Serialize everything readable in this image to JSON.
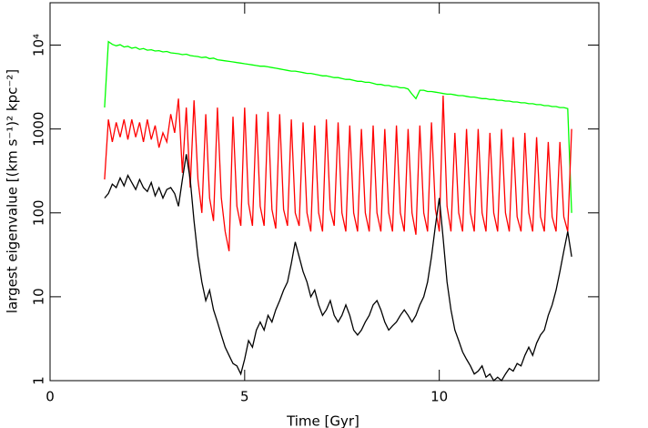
{
  "chart_data": {
    "type": "line",
    "xlabel": "Time [Gyr]",
    "ylabel": "largest eigenvalue [(km s⁻¹)² kpc⁻²]",
    "xlim": [
      0,
      14.1
    ],
    "xticks": [
      0,
      5,
      10
    ],
    "ylim": [
      1,
      32000
    ],
    "ylog": true,
    "yticks": [
      1,
      10,
      100,
      1000,
      {
        "value": 10000,
        "label": "10⁴"
      }
    ],
    "x": [
      1.4,
      1.5,
      1.6,
      1.7,
      1.8,
      1.9,
      2.0,
      2.1,
      2.2,
      2.3,
      2.4,
      2.5,
      2.6,
      2.7,
      2.8,
      2.9,
      3.0,
      3.1,
      3.2,
      3.3,
      3.4,
      3.5,
      3.6,
      3.7,
      3.8,
      3.9,
      4.0,
      4.1,
      4.2,
      4.3,
      4.4,
      4.5,
      4.6,
      4.7,
      4.8,
      4.9,
      5.0,
      5.1,
      5.2,
      5.3,
      5.4,
      5.5,
      5.6,
      5.7,
      5.8,
      5.9,
      6.0,
      6.1,
      6.2,
      6.3,
      6.4,
      6.5,
      6.6,
      6.7,
      6.8,
      6.9,
      7.0,
      7.1,
      7.2,
      7.3,
      7.4,
      7.5,
      7.6,
      7.7,
      7.8,
      7.9,
      8.0,
      8.1,
      8.2,
      8.3,
      8.4,
      8.5,
      8.6,
      8.7,
      8.8,
      8.9,
      9.0,
      9.1,
      9.2,
      9.3,
      9.4,
      9.5,
      9.6,
      9.7,
      9.8,
      9.9,
      10.0,
      10.1,
      10.2,
      10.3,
      10.4,
      10.5,
      10.6,
      10.7,
      10.8,
      10.9,
      11.0,
      11.1,
      11.2,
      11.3,
      11.4,
      11.5,
      11.6,
      11.7,
      11.8,
      11.9,
      12.0,
      12.1,
      12.2,
      12.3,
      12.4,
      12.5,
      12.6,
      12.7,
      12.8,
      12.9,
      13.0,
      13.1,
      13.2,
      13.3,
      13.4
    ],
    "series": [
      {
        "color": "#00ff00",
        "values": [
          1800,
          11000,
          10200,
          9800,
          10100,
          9500,
          9700,
          9200,
          9400,
          8900,
          9100,
          8700,
          8800,
          8500,
          8600,
          8300,
          8400,
          8100,
          8000,
          7900,
          7700,
          7800,
          7500,
          7400,
          7300,
          7100,
          7200,
          6900,
          7000,
          6700,
          6600,
          6500,
          6400,
          6300,
          6200,
          6100,
          6000,
          5900,
          5800,
          5700,
          5600,
          5600,
          5500,
          5400,
          5300,
          5200,
          5100,
          5000,
          4900,
          4900,
          4800,
          4700,
          4600,
          4600,
          4500,
          4400,
          4300,
          4300,
          4200,
          4100,
          4100,
          4000,
          3900,
          3900,
          3800,
          3700,
          3700,
          3600,
          3600,
          3500,
          3400,
          3400,
          3300,
          3300,
          3200,
          3200,
          3100,
          3100,
          3000,
          2600,
          2300,
          2900,
          2900,
          2800,
          2800,
          2750,
          2700,
          2650,
          2600,
          2600,
          2550,
          2500,
          2500,
          2450,
          2400,
          2400,
          2350,
          2300,
          2300,
          2250,
          2250,
          2200,
          2200,
          2150,
          2150,
          2100,
          2100,
          2050,
          2050,
          2000,
          2000,
          1950,
          1950,
          1900,
          1900,
          1850,
          1850,
          1800,
          1800,
          1750,
          100
        ]
      },
      {
        "color": "#ff0000",
        "values": [
          250,
          1300,
          700,
          1200,
          800,
          1300,
          750,
          1300,
          800,
          1200,
          700,
          1300,
          750,
          1100,
          600,
          900,
          700,
          1500,
          900,
          2300,
          300,
          1800,
          200,
          2200,
          250,
          100,
          1500,
          150,
          80,
          1800,
          150,
          60,
          35,
          1400,
          120,
          70,
          1800,
          130,
          70,
          1500,
          120,
          70,
          1600,
          110,
          65,
          1500,
          110,
          70,
          1300,
          100,
          70,
          1200,
          100,
          60,
          1100,
          100,
          60,
          1300,
          110,
          70,
          1200,
          100,
          60,
          1100,
          100,
          60,
          1000,
          100,
          60,
          1100,
          100,
          60,
          1000,
          100,
          60,
          1100,
          100,
          60,
          1000,
          100,
          55,
          1100,
          100,
          60,
          1200,
          110,
          60,
          2500,
          120,
          60,
          900,
          100,
          60,
          1000,
          100,
          60,
          1000,
          100,
          60,
          900,
          100,
          60,
          1000,
          100,
          60,
          800,
          90,
          60,
          900,
          100,
          60,
          800,
          90,
          60,
          700,
          90,
          60,
          700,
          90,
          60,
          1000
        ]
      },
      {
        "color": "#000000",
        "values": [
          150,
          170,
          220,
          200,
          260,
          210,
          280,
          230,
          190,
          250,
          200,
          180,
          230,
          160,
          200,
          150,
          190,
          200,
          170,
          120,
          250,
          500,
          250,
          80,
          30,
          15,
          9,
          12,
          7,
          5,
          3.5,
          2.5,
          2,
          1.6,
          1.5,
          1.2,
          1.8,
          3,
          2.5,
          4,
          5,
          4,
          6,
          5,
          7,
          9,
          12,
          15,
          25,
          45,
          30,
          20,
          15,
          10,
          12,
          8,
          6,
          7,
          9,
          6,
          5,
          6,
          8,
          6,
          4,
          3.5,
          4,
          5,
          6,
          8,
          9,
          7,
          5,
          4,
          4.5,
          5,
          6,
          7,
          6,
          5,
          6,
          8,
          10,
          15,
          30,
          70,
          150,
          50,
          15,
          7,
          4,
          3,
          2.2,
          1.8,
          1.5,
          1.2,
          1.3,
          1.5,
          1.1,
          1.2,
          1,
          1.1,
          1,
          1.2,
          1.4,
          1.3,
          1.6,
          1.5,
          2,
          2.5,
          2,
          2.8,
          3.5,
          4,
          6,
          8,
          12,
          20,
          35,
          60,
          30
        ]
      }
    ]
  }
}
